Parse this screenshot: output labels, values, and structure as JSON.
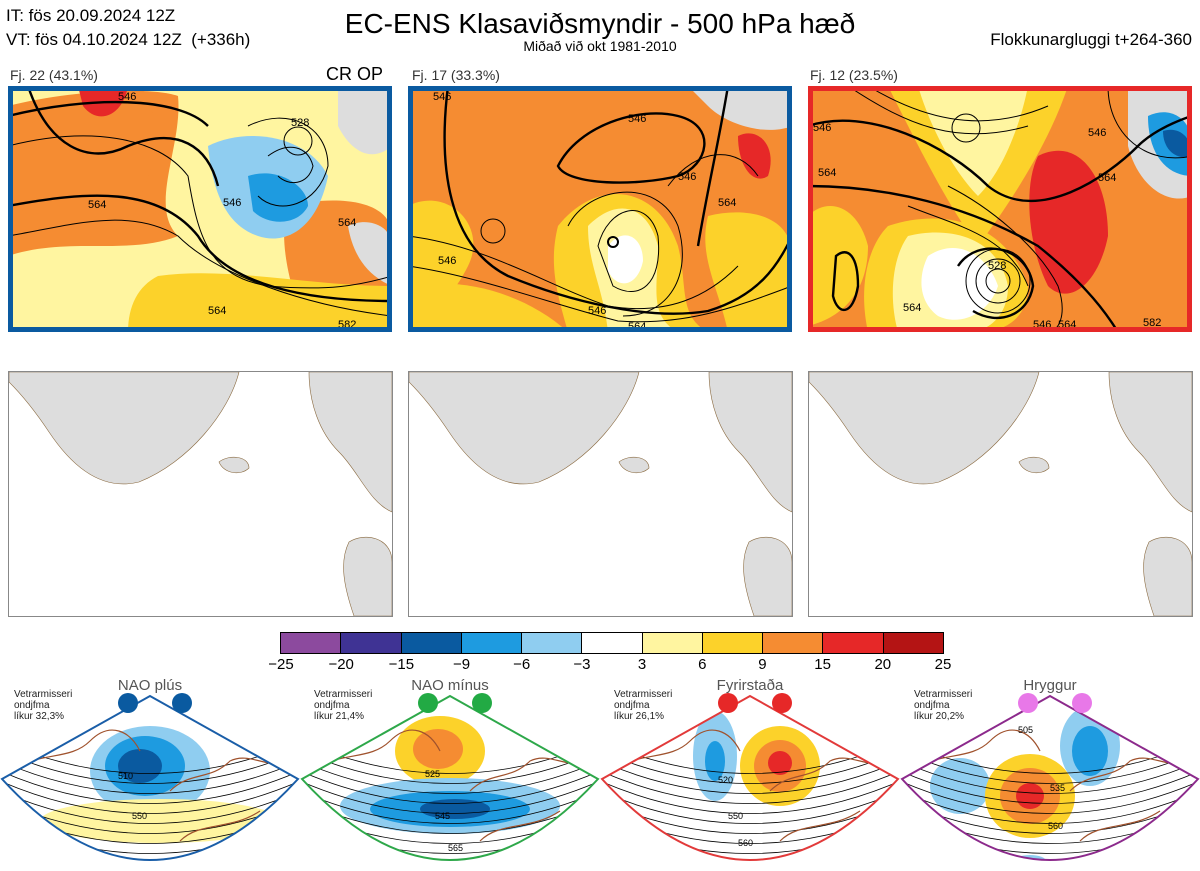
{
  "header": {
    "init_time": "IT: fös 20.09.2024 12Z",
    "valid_time": "VT: fös 04.10.2024 12Z  (+336h)",
    "title": "EC-ENS Klasaviðsmyndir - 500 hPa hæð",
    "subtitle": "Miðað við okt 1981-2010",
    "window": "Flokkunargluggi t+264-360"
  },
  "clusters": [
    {
      "label": "Fj. 22 (43.1%)",
      "border_color": "#0a5aa0",
      "contours": [
        "546",
        "528",
        "546",
        "564",
        "564",
        "564",
        "582"
      ]
    },
    {
      "label": "Fj. 17 (33.3%)",
      "border_color": "#0a5aa0",
      "contours": [
        "546",
        "546",
        "546",
        "564",
        "546",
        "564",
        "546"
      ]
    },
    {
      "label": "Fj. 12 (23.5%)",
      "border_color": "#e62828",
      "contours": [
        "546",
        "546",
        "564",
        "564",
        "528",
        "564",
        "546",
        "564",
        "582"
      ]
    }
  ],
  "cr_op_label": "CR OP",
  "colorbar": {
    "ticks": [
      "−25",
      "−20",
      "−15",
      "−9",
      "−6",
      "−3",
      "3",
      "6",
      "9",
      "15",
      "20",
      "25"
    ],
    "colors": [
      "#8c4a9e",
      "#3f3394",
      "#0a5aa0",
      "#1e9be0",
      "#8fcdf0",
      "#ffffff",
      "#fff5a0",
      "#fcd22a",
      "#f58c32",
      "#e62828",
      "#b41414"
    ]
  },
  "regimes": [
    {
      "name": "NAO plús",
      "note": "Vetrarmisseri\nondjfma\nlíkur 32,3%",
      "dot_color": "#0a5aa0",
      "frame_color": "#1a5ea8",
      "contour_labels": [
        "510",
        "550"
      ]
    },
    {
      "name": "NAO mínus",
      "note": "Vetrarmisseri\nondjfma\nlíkur 21,4%",
      "dot_color": "#22aa44",
      "frame_color": "#2ea84a",
      "contour_labels": [
        "525",
        "545",
        "565"
      ]
    },
    {
      "name": "Fyrirstaða",
      "note": "Vetrarmisseri\nondjfma\nlíkur 26,1%",
      "dot_color": "#e62828",
      "frame_color": "#e23a3a",
      "contour_labels": [
        "520",
        "550",
        "560"
      ]
    },
    {
      "name": "Hryggur",
      "note": "Vetrarmisseri\nondjfma\nlíkur 20,2%",
      "dot_color": "#e878e8",
      "frame_color": "#8c2a8c",
      "contour_labels": [
        "505",
        "535",
        "560"
      ]
    }
  ]
}
